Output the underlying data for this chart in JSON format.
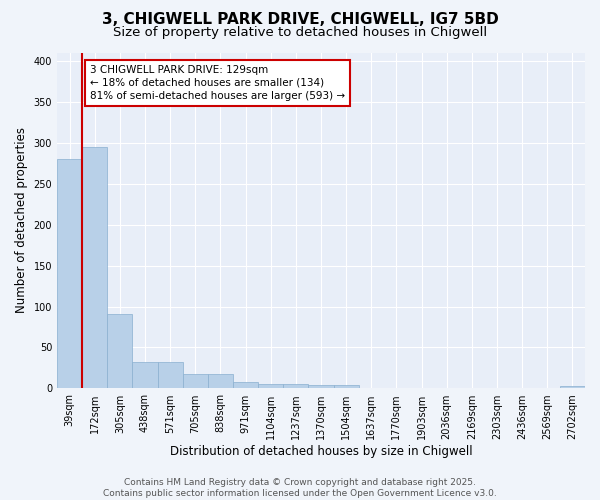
{
  "title_line1": "3, CHIGWELL PARK DRIVE, CHIGWELL, IG7 5BD",
  "title_line2": "Size of property relative to detached houses in Chigwell",
  "xlabel": "Distribution of detached houses by size in Chigwell",
  "ylabel": "Number of detached properties",
  "categories": [
    "39sqm",
    "172sqm",
    "305sqm",
    "438sqm",
    "571sqm",
    "705sqm",
    "838sqm",
    "971sqm",
    "1104sqm",
    "1237sqm",
    "1370sqm",
    "1504sqm",
    "1637sqm",
    "1770sqm",
    "1903sqm",
    "2036sqm",
    "2169sqm",
    "2303sqm",
    "2436sqm",
    "2569sqm",
    "2702sqm"
  ],
  "values": [
    280,
    295,
    91,
    32,
    32,
    18,
    18,
    8,
    5,
    5,
    4,
    4,
    0,
    0,
    0,
    0,
    0,
    0,
    0,
    0,
    3
  ],
  "bar_color": "#b8d0e8",
  "bar_edge_color": "#8ab0d0",
  "vline_color": "#cc0000",
  "vline_pos": 0.5,
  "annotation_text": "3 CHIGWELL PARK DRIVE: 129sqm\n← 18% of detached houses are smaller (134)\n81% of semi-detached houses are larger (593) →",
  "annotation_box_edgecolor": "#cc0000",
  "ylim": [
    0,
    410
  ],
  "yticks": [
    0,
    50,
    100,
    150,
    200,
    250,
    300,
    350,
    400
  ],
  "plot_bg_color": "#e8eef8",
  "fig_bg_color": "#f0f4fa",
  "grid_color": "#ffffff",
  "footer_text": "Contains HM Land Registry data © Crown copyright and database right 2025.\nContains public sector information licensed under the Open Government Licence v3.0.",
  "title_fontsize": 11,
  "subtitle_fontsize": 9.5,
  "axis_label_fontsize": 8.5,
  "tick_fontsize": 7,
  "annotation_fontsize": 7.5,
  "footer_fontsize": 6.5
}
